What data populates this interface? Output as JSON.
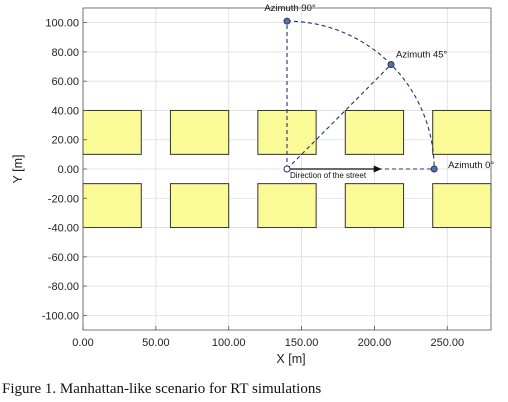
{
  "caption": "Figure 1.    Manhattan-like scenario for RT simulations",
  "chart_data": {
    "type": "scatter",
    "title": "",
    "xlabel": "X [m]",
    "ylabel": "Y [m]",
    "xlim": [
      0,
      280
    ],
    "ylim": [
      -110,
      110
    ],
    "grid": true,
    "x_ticks": [
      0,
      50,
      100,
      150,
      200,
      250
    ],
    "y_ticks": [
      100,
      80,
      60,
      40,
      20,
      0,
      -20,
      -40,
      -60,
      -80,
      -100
    ],
    "x_tick_labels": [
      "0.00",
      "50.00",
      "100.00",
      "150.00",
      "200.00",
      "250.00"
    ],
    "y_tick_labels": [
      "100.00",
      "80.00",
      "60.00",
      "40.00",
      "20.00",
      "0.00",
      "-20.00",
      "-40.00",
      "-60.00",
      "-80.00",
      "-100.00"
    ],
    "buildings": [
      {
        "x0": 0,
        "x1": 40,
        "y0": 10,
        "y1": 40
      },
      {
        "x0": 60,
        "x1": 100,
        "y0": 10,
        "y1": 40
      },
      {
        "x0": 120,
        "x1": 160,
        "y0": 10,
        "y1": 40
      },
      {
        "x0": 180,
        "x1": 220,
        "y0": 10,
        "y1": 40
      },
      {
        "x0": 240,
        "x1": 280,
        "y0": 10,
        "y1": 40
      },
      {
        "x0": 0,
        "x1": 40,
        "y0": -40,
        "y1": -10
      },
      {
        "x0": 60,
        "x1": 100,
        "y0": -40,
        "y1": -10
      },
      {
        "x0": 120,
        "x1": 160,
        "y0": -40,
        "y1": -10
      },
      {
        "x0": 180,
        "x1": 220,
        "y0": -40,
        "y1": -10
      },
      {
        "x0": 240,
        "x1": 280,
        "y0": -40,
        "y1": -10
      }
    ],
    "transmitter": {
      "x": 140,
      "y": 0
    },
    "arc_radius": 101,
    "receivers": [
      {
        "label": "Azimuth 0°",
        "x": 241,
        "y": 0
      },
      {
        "label": "Azimuth 45°",
        "x": 211.4,
        "y": 71.4
      },
      {
        "label": "Azimuth 90°",
        "x": 140,
        "y": 101
      }
    ],
    "street_direction": {
      "label": "Direction of the street",
      "x0": 140,
      "x1": 205,
      "y": 0
    },
    "colors": {
      "building_fill": "#fafa96",
      "building_edge": "#333333",
      "path": "#24346b",
      "marker": "#5472a8",
      "grid": "#dddddd",
      "axes": "#555555"
    }
  }
}
